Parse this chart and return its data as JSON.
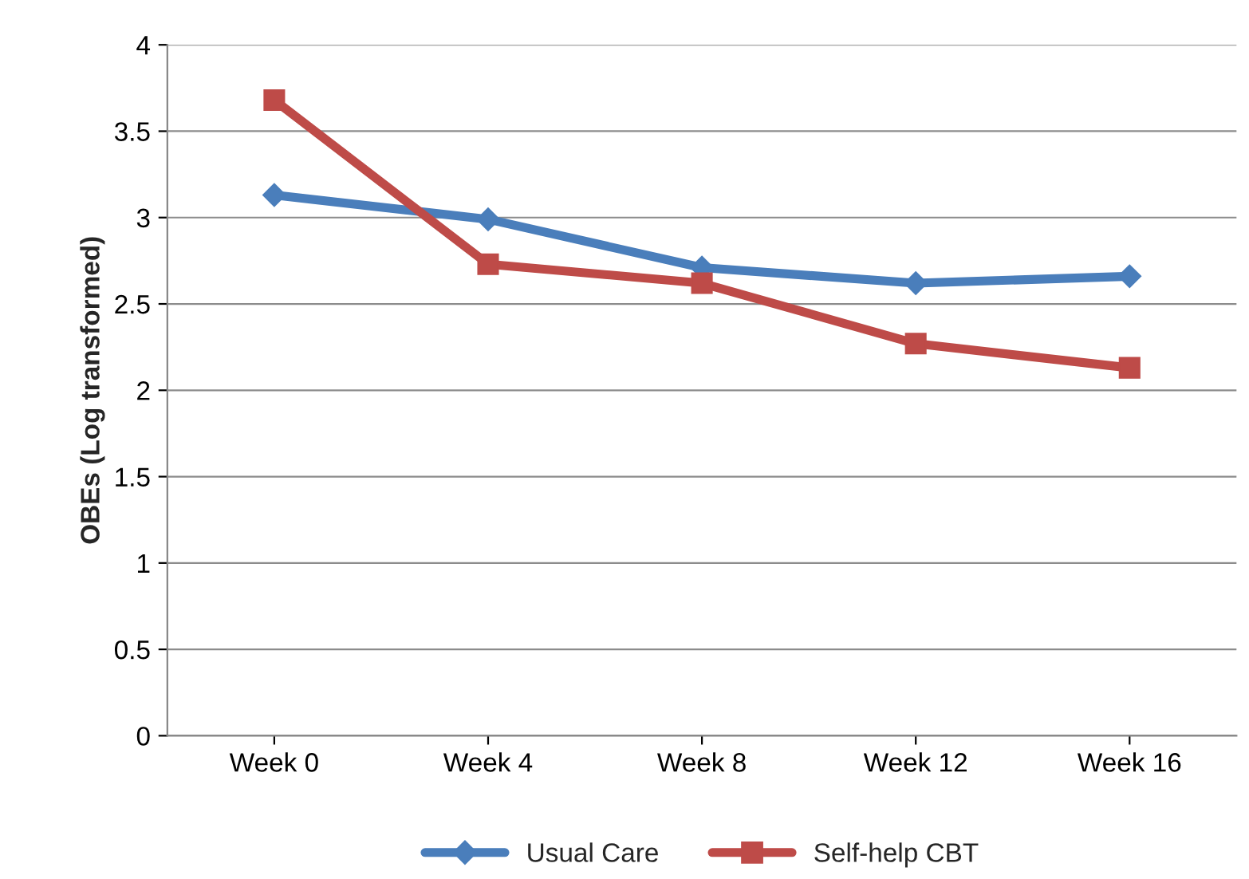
{
  "chart_data": {
    "type": "line",
    "ylabel": "OBEs (Log transformed)",
    "categories": [
      "Week 0",
      "Week 4",
      "Week 8",
      "Week 12",
      "Week 16"
    ],
    "series": [
      {
        "name": "Usual Care",
        "color": "#4a7ebb",
        "marker": "diamond",
        "values": [
          3.13,
          2.99,
          2.71,
          2.62,
          2.66
        ]
      },
      {
        "name": "Self-help CBT",
        "color": "#be4b48",
        "marker": "square",
        "values": [
          3.68,
          2.73,
          2.62,
          2.27,
          2.13
        ]
      }
    ],
    "ylim": [
      0,
      4
    ],
    "yticks": [
      0,
      0.5,
      1,
      1.5,
      2,
      2.5,
      3,
      3.5,
      4
    ],
    "grid": "y",
    "legend": "bottom",
    "line_style": "solid"
  }
}
